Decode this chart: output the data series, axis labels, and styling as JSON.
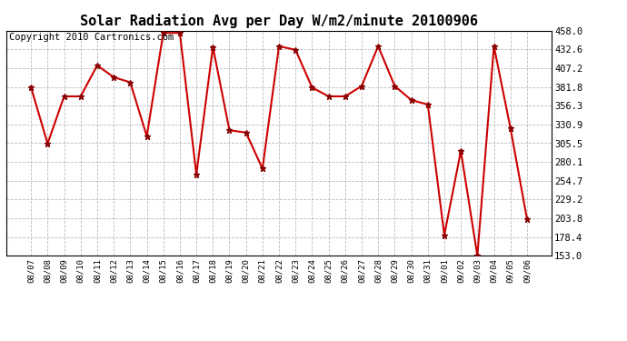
{
  "title": "Solar Radiation Avg per Day W/m2/minute 20100906",
  "copyright_text": "Copyright 2010 Cartronics.com",
  "x_labels": [
    "08/07",
    "08/08",
    "08/09",
    "08/10",
    "08/11",
    "08/12",
    "08/13",
    "08/14",
    "08/15",
    "08/16",
    "08/17",
    "08/18",
    "08/19",
    "08/20",
    "08/21",
    "08/22",
    "08/23",
    "08/24",
    "08/25",
    "08/26",
    "08/27",
    "08/28",
    "08/29",
    "08/30",
    "08/31",
    "09/01",
    "09/02",
    "09/03",
    "09/04",
    "09/05",
    "09/06"
  ],
  "y_values": [
    381,
    305,
    369,
    369,
    411,
    395,
    388,
    315,
    455,
    455,
    263,
    436,
    323,
    320,
    271,
    437,
    432,
    381,
    369,
    369,
    383,
    437,
    383,
    364,
    358,
    181,
    295,
    153,
    437,
    326,
    203
  ],
  "line_color": "#cc0000",
  "marker_color": "#880000",
  "background_color": "#ffffff",
  "plot_bg_color": "#ffffff",
  "grid_color": "#bbbbbb",
  "y_tick_values": [
    153.0,
    178.4,
    203.8,
    229.2,
    254.7,
    280.1,
    305.5,
    330.9,
    356.3,
    381.8,
    407.2,
    432.6,
    458.0
  ],
  "ylim_min": 153.0,
  "ylim_max": 458.0,
  "title_fontsize": 11,
  "copyright_fontsize": 7.5
}
